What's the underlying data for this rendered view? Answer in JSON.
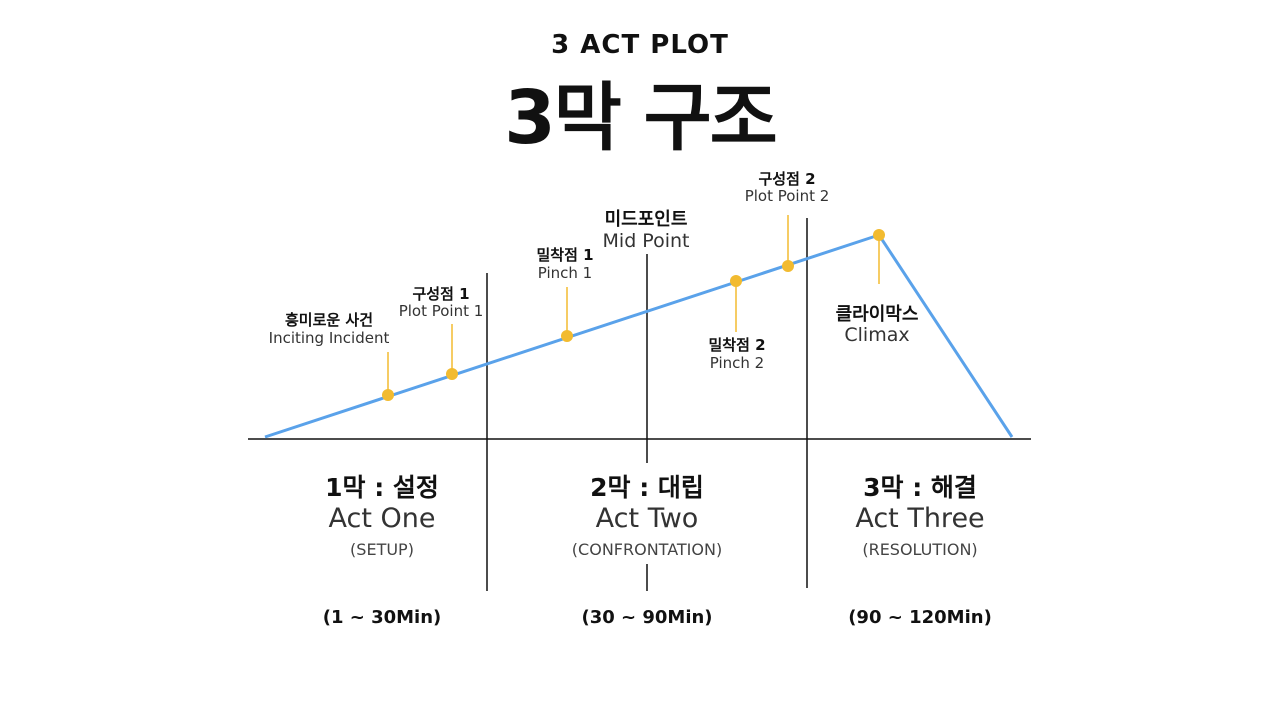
{
  "header": {
    "subtitle": "3 ACT PLOT",
    "title": "3막 구조"
  },
  "points": [
    {
      "id": "inciting-incident",
      "ko": "흥미로운 사건",
      "en": "Inciting Incident"
    },
    {
      "id": "plot-point-1",
      "ko": "구성점 1",
      "en": "Plot Point 1"
    },
    {
      "id": "pinch-1",
      "ko": "밀착점 1",
      "en": "Pinch 1"
    },
    {
      "id": "mid-point",
      "ko": "미드포인트",
      "en": "Mid Point"
    },
    {
      "id": "pinch-2",
      "ko": "밀착점 2",
      "en": "Pinch 2"
    },
    {
      "id": "plot-point-2",
      "ko": "구성점 2",
      "en": "Plot Point 2"
    },
    {
      "id": "climax",
      "ko": "클라이막스",
      "en": "Climax"
    }
  ],
  "acts": [
    {
      "ko": "1막 : 설정",
      "en": "Act One",
      "sub": "(SETUP)",
      "time": "(1 ~ 30Min)"
    },
    {
      "ko": "2막 : 대립",
      "en": "Act Two",
      "sub": "(CONFRONTATION)",
      "time": "(30 ~ 90Min)"
    },
    {
      "ko": "3막 : 해결",
      "en": "Act Three",
      "sub": "(RESOLUTION)",
      "time": "(90 ~ 120Min)"
    }
  ],
  "colors": {
    "curve": "#5aa2ea",
    "marker": "#f2bb30",
    "axis": "#111111"
  }
}
